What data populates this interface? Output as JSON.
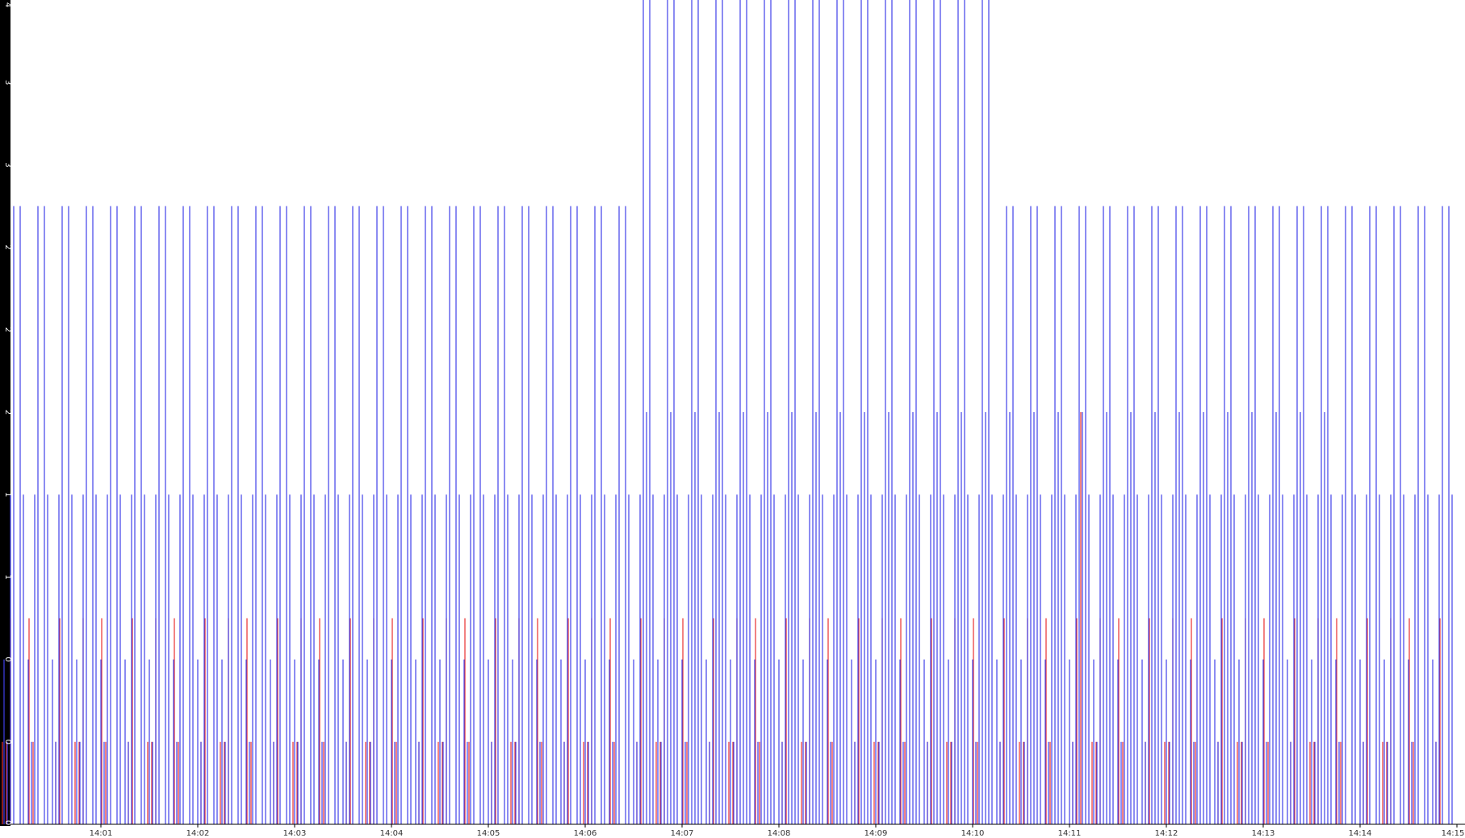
{
  "chart_data": {
    "type": "line",
    "title": "",
    "xlabel": "",
    "ylabel": "",
    "colors": {
      "series_a": "#4040e8",
      "series_b": "#e83030",
      "axis_bg": "#000000",
      "axis_text": "#ffffff",
      "x_text": "#333333"
    },
    "y_tick_labels": [
      "0",
      "0",
      "0",
      "1",
      "1",
      "2",
      "2",
      "2",
      "3",
      "3",
      "4"
    ],
    "x_tick_labels": [
      "14:01",
      "14:02",
      "14:03",
      "14:04",
      "14:05",
      "14:06",
      "14:07",
      "14:08",
      "14:09",
      "14:10",
      "14:11",
      "14:12",
      "14:13",
      "14:14",
      "14:15"
    ],
    "ylim": [
      0,
      4
    ],
    "x_start_minute": 0.1,
    "x_end_minute": 15,
    "spike_period_seconds": 15,
    "series": [
      {
        "type": "spikes",
        "color_key": "series_a",
        "baseline_levels": [
          0.4,
          0.8,
          1.2,
          1.6
        ],
        "tall_level": 3.0,
        "peak_level_4_window": [
          "14:06:30",
          "14:10:15"
        ],
        "mid_level_2_window": [
          "14:06:30",
          "14:13:45"
        ]
      },
      {
        "type": "spikes",
        "color_key": "series_b",
        "levels": [
          0.4,
          1.0
        ],
        "outlier": {
          "time": "14:11:07",
          "value": 2.0
        }
      }
    ]
  }
}
